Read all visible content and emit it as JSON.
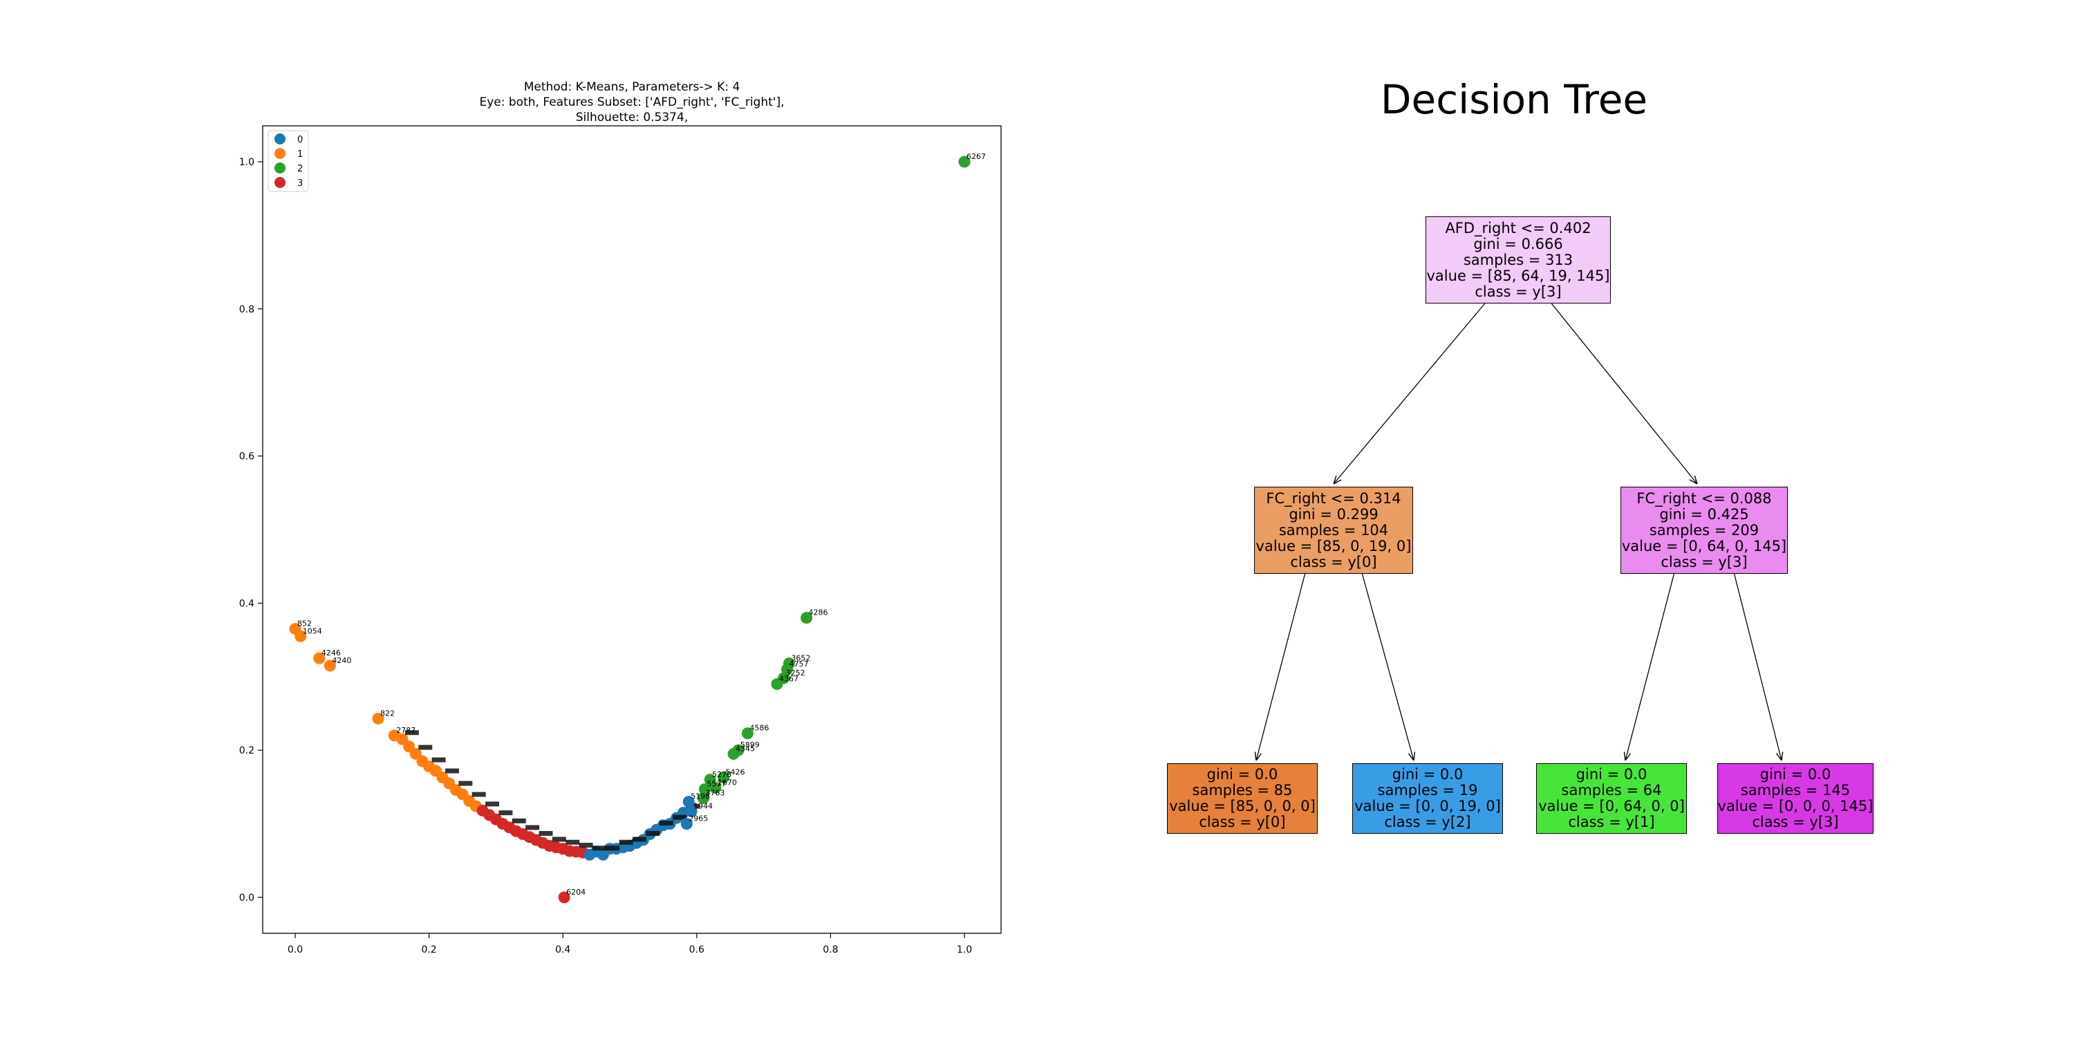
{
  "chart_data": [
    {
      "type": "scatter",
      "title_lines": [
        "Method: K-Means, Parameters-> K: 4",
        "Eye: both, Features Subset: ['AFD_right', 'FC_right'],",
        "Silhouette: 0.5374,"
      ],
      "xlabel": "",
      "ylabel": "",
      "xlim": [
        -0.05,
        1.05
      ],
      "ylim": [
        -0.05,
        1.05
      ],
      "x_ticks": [
        "0.0",
        "0.2",
        "0.4",
        "0.6",
        "0.8",
        "1.0"
      ],
      "y_ticks": [
        "0.0",
        "0.2",
        "0.4",
        "0.6",
        "0.8",
        "1.0"
      ],
      "grid": false,
      "legend_position": "top-left",
      "legend": [
        {
          "label": "0",
          "color": "#1f77b4"
        },
        {
          "label": "1",
          "color": "#ff7f0e"
        },
        {
          "label": "2",
          "color": "#2ca02c"
        },
        {
          "label": "3",
          "color": "#d62728"
        }
      ],
      "labeled_points": [
        {
          "x": 0.0,
          "y": 0.365,
          "cluster": 1,
          "label": "852"
        },
        {
          "x": 0.008,
          "y": 0.355,
          "cluster": 1,
          "label": "1054"
        },
        {
          "x": 0.036,
          "y": 0.325,
          "cluster": 1,
          "label": "4246"
        },
        {
          "x": 0.052,
          "y": 0.315,
          "cluster": 1,
          "label": "4240"
        },
        {
          "x": 0.124,
          "y": 0.243,
          "cluster": 1,
          "label": "822"
        },
        {
          "x": 0.148,
          "y": 0.22,
          "cluster": 1,
          "label": "2787"
        },
        {
          "x": 0.402,
          "y": 0.0,
          "cluster": 3,
          "label": "6204"
        },
        {
          "x": 1.0,
          "y": 1.0,
          "cluster": 2,
          "label": "6267"
        },
        {
          "x": 0.764,
          "y": 0.38,
          "cluster": 2,
          "label": "4286"
        },
        {
          "x": 0.738,
          "y": 0.318,
          "cluster": 2,
          "label": "3652"
        },
        {
          "x": 0.735,
          "y": 0.31,
          "cluster": 2,
          "label": "4757"
        },
        {
          "x": 0.73,
          "y": 0.298,
          "cluster": 2,
          "label": "3252"
        },
        {
          "x": 0.72,
          "y": 0.29,
          "cluster": 2,
          "label": "4367"
        },
        {
          "x": 0.676,
          "y": 0.223,
          "cluster": 2,
          "label": "4586"
        },
        {
          "x": 0.662,
          "y": 0.2,
          "cluster": 2,
          "label": "5899"
        },
        {
          "x": 0.655,
          "y": 0.195,
          "cluster": 2,
          "label": "4345"
        },
        {
          "x": 0.64,
          "y": 0.163,
          "cluster": 2,
          "label": "5426"
        },
        {
          "x": 0.62,
          "y": 0.16,
          "cluster": 2,
          "label": "5278"
        },
        {
          "x": 0.628,
          "y": 0.149,
          "cluster": 2,
          "label": "1670"
        },
        {
          "x": 0.612,
          "y": 0.147,
          "cluster": 2,
          "label": "5577"
        },
        {
          "x": 0.61,
          "y": 0.135,
          "cluster": 2,
          "label": "3763"
        },
        {
          "x": 0.588,
          "y": 0.13,
          "cluster": 0,
          "label": "5198"
        },
        {
          "x": 0.592,
          "y": 0.117,
          "cluster": 0,
          "label": "1944"
        },
        {
          "x": 0.585,
          "y": 0.1,
          "cluster": 0,
          "label": "2965"
        }
      ],
      "curve_points": [
        {
          "x": 0.16,
          "y": 0.215,
          "cluster": 1
        },
        {
          "x": 0.17,
          "y": 0.205,
          "cluster": 1
        },
        {
          "x": 0.18,
          "y": 0.195,
          "cluster": 1
        },
        {
          "x": 0.19,
          "y": 0.185,
          "cluster": 1
        },
        {
          "x": 0.2,
          "y": 0.178,
          "cluster": 1
        },
        {
          "x": 0.21,
          "y": 0.172,
          "cluster": 1
        },
        {
          "x": 0.22,
          "y": 0.163,
          "cluster": 1
        },
        {
          "x": 0.23,
          "y": 0.155,
          "cluster": 1
        },
        {
          "x": 0.24,
          "y": 0.146,
          "cluster": 1
        },
        {
          "x": 0.25,
          "y": 0.14,
          "cluster": 1
        },
        {
          "x": 0.26,
          "y": 0.131,
          "cluster": 1
        },
        {
          "x": 0.27,
          "y": 0.124,
          "cluster": 1
        },
        {
          "x": 0.28,
          "y": 0.118,
          "cluster": 3
        },
        {
          "x": 0.29,
          "y": 0.112,
          "cluster": 3
        },
        {
          "x": 0.3,
          "y": 0.106,
          "cluster": 3
        },
        {
          "x": 0.31,
          "y": 0.1,
          "cluster": 3
        },
        {
          "x": 0.32,
          "y": 0.095,
          "cluster": 3
        },
        {
          "x": 0.33,
          "y": 0.09,
          "cluster": 3
        },
        {
          "x": 0.34,
          "y": 0.086,
          "cluster": 3
        },
        {
          "x": 0.35,
          "y": 0.082,
          "cluster": 3
        },
        {
          "x": 0.36,
          "y": 0.078,
          "cluster": 3
        },
        {
          "x": 0.37,
          "y": 0.074,
          "cluster": 3
        },
        {
          "x": 0.38,
          "y": 0.07,
          "cluster": 3
        },
        {
          "x": 0.39,
          "y": 0.068,
          "cluster": 3
        },
        {
          "x": 0.4,
          "y": 0.066,
          "cluster": 3
        },
        {
          "x": 0.41,
          "y": 0.063,
          "cluster": 3
        },
        {
          "x": 0.42,
          "y": 0.062,
          "cluster": 3
        },
        {
          "x": 0.43,
          "y": 0.061,
          "cluster": 3
        },
        {
          "x": 0.44,
          "y": 0.058,
          "cluster": 0
        },
        {
          "x": 0.45,
          "y": 0.062,
          "cluster": 0
        },
        {
          "x": 0.46,
          "y": 0.058,
          "cluster": 0
        },
        {
          "x": 0.47,
          "y": 0.066,
          "cluster": 0
        },
        {
          "x": 0.48,
          "y": 0.066,
          "cluster": 0
        },
        {
          "x": 0.49,
          "y": 0.068,
          "cluster": 0
        },
        {
          "x": 0.5,
          "y": 0.07,
          "cluster": 0
        },
        {
          "x": 0.51,
          "y": 0.074,
          "cluster": 0
        },
        {
          "x": 0.52,
          "y": 0.078,
          "cluster": 0
        },
        {
          "x": 0.53,
          "y": 0.086,
          "cluster": 0
        },
        {
          "x": 0.54,
          "y": 0.092,
          "cluster": 0
        },
        {
          "x": 0.55,
          "y": 0.098,
          "cluster": 0
        },
        {
          "x": 0.56,
          "y": 0.1,
          "cluster": 0
        },
        {
          "x": 0.57,
          "y": 0.108,
          "cluster": 0
        },
        {
          "x": 0.58,
          "y": 0.115,
          "cluster": 0
        }
      ]
    },
    {
      "type": "tree",
      "title": "Decision Tree",
      "nodes": [
        {
          "id": "root",
          "lines": [
            "AFD_right <= 0.402",
            "gini = 0.666",
            "samples = 313",
            "value = [85, 64, 19, 145]",
            "class = y[3]"
          ],
          "color": "#f3cbf8"
        },
        {
          "id": "left",
          "lines": [
            "FC_right <= 0.314",
            "gini = 0.299",
            "samples = 104",
            "value = [85, 0, 19, 0]",
            "class = y[0]"
          ],
          "color": "#eb9e64"
        },
        {
          "id": "right",
          "lines": [
            "FC_right <= 0.088",
            "gini = 0.425",
            "samples = 209",
            "value = [0, 64, 0, 145]",
            "class = y[3]"
          ],
          "color": "#ea8bef"
        },
        {
          "id": "leaf-ll",
          "lines": [
            "gini = 0.0",
            "samples = 85",
            "value = [85, 0, 0, 0]",
            "class = y[0]"
          ],
          "color": "#e58139"
        },
        {
          "id": "leaf-lr",
          "lines": [
            "gini = 0.0",
            "samples = 19",
            "value = [0, 0, 19, 0]",
            "class = y[2]"
          ],
          "color": "#399de5"
        },
        {
          "id": "leaf-rl",
          "lines": [
            "gini = 0.0",
            "samples = 64",
            "value = [0, 64, 0, 0]",
            "class = y[1]"
          ],
          "color": "#47e539"
        },
        {
          "id": "leaf-rr",
          "lines": [
            "gini = 0.0",
            "samples = 145",
            "value = [0, 0, 0, 145]",
            "class = y[3]"
          ],
          "color": "#d739e5"
        }
      ],
      "edges": [
        [
          "root",
          "left"
        ],
        [
          "root",
          "right"
        ],
        [
          "left",
          "leaf-ll"
        ],
        [
          "left",
          "leaf-lr"
        ],
        [
          "right",
          "leaf-rl"
        ],
        [
          "right",
          "leaf-rr"
        ]
      ]
    }
  ]
}
